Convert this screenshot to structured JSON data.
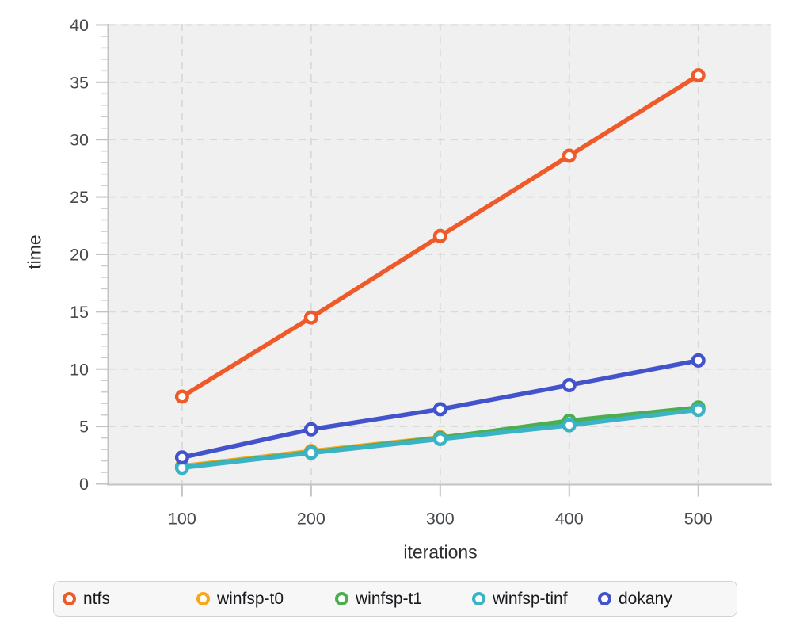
{
  "chart_data": {
    "type": "line",
    "xlabel": "iterations",
    "ylabel": "time",
    "x": [
      100,
      200,
      300,
      400,
      500
    ],
    "series": [
      {
        "name": "ntfs",
        "color": "#ee5a28",
        "values": [
          7.6,
          14.5,
          21.6,
          28.6,
          35.6
        ]
      },
      {
        "name": "winfsp-t0",
        "color": "#f9a61f",
        "values": [
          1.55,
          2.85,
          4.05,
          5.3,
          6.55
        ]
      },
      {
        "name": "winfsp-t1",
        "color": "#4cae4f",
        "values": [
          1.45,
          2.75,
          4.0,
          5.5,
          6.65
        ]
      },
      {
        "name": "winfsp-tinf",
        "color": "#3bb3c6",
        "values": [
          1.4,
          2.7,
          3.9,
          5.1,
          6.45
        ]
      },
      {
        "name": "dokany",
        "color": "#4353cb",
        "values": [
          2.3,
          4.75,
          6.5,
          8.6,
          10.75
        ]
      }
    ],
    "xlim": [
      43,
      556
    ],
    "ylim": [
      0,
      40.1
    ],
    "x_ticks": [
      100,
      200,
      300,
      400,
      500
    ],
    "y_ticks": [
      0,
      5,
      10,
      15,
      20,
      25,
      30,
      35,
      40
    ],
    "y_minor_step": 1,
    "grid_style": "dashed",
    "legend_position": "bottom",
    "marker": "open-circle",
    "colors": {
      "plot_bg": "#f0f0f1",
      "grid": "#d9d9d9",
      "axis": "#c3c3c3",
      "minor_tick": "#cccccc",
      "tick_label": "#46494d",
      "axis_label": "#2c2e31",
      "legend_bg": "#f7f7f7",
      "legend_border": "#d2d2d2",
      "legend_text": "#17191c",
      "marker_fill": "#ffffff"
    }
  }
}
